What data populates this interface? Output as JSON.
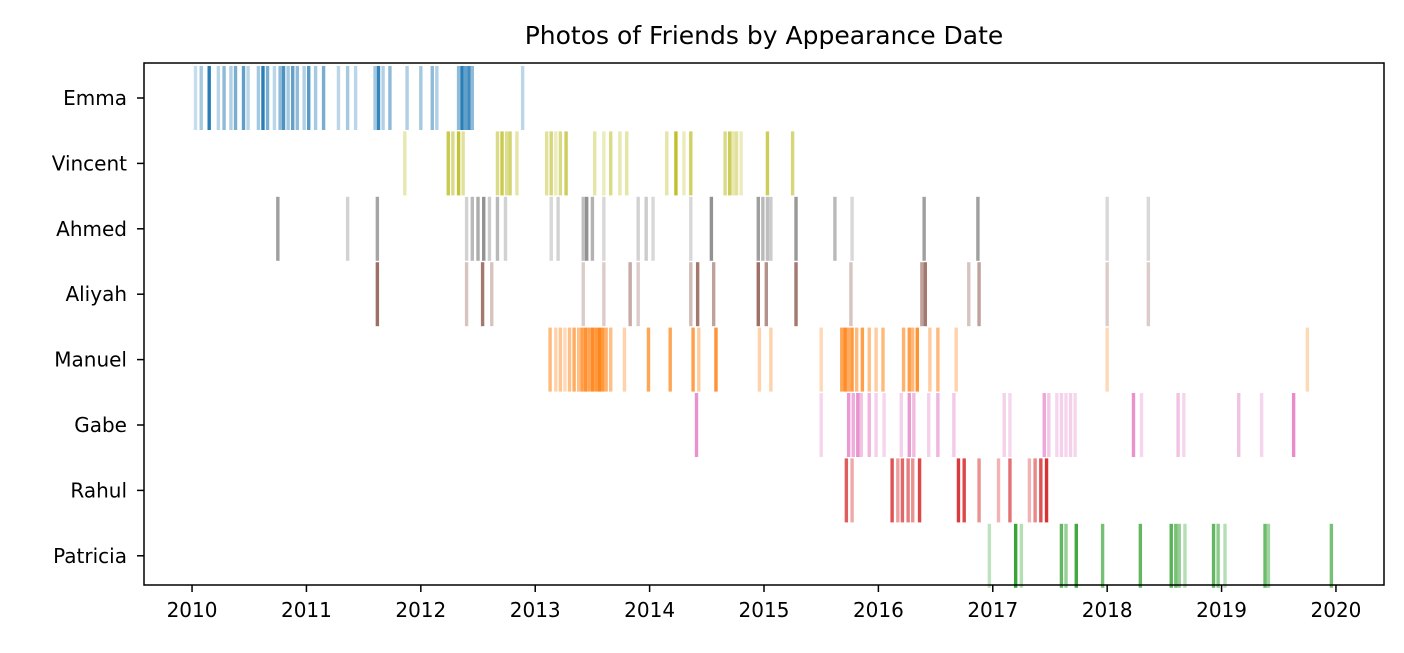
{
  "chart_data": {
    "type": "event-strip",
    "title": "Photos of Friends by Appearance Date",
    "xlabel": "",
    "ylabel": "",
    "xlim": [
      2009.58,
      2020.42
    ],
    "x_ticks": [
      "2010",
      "2011",
      "2012",
      "2013",
      "2014",
      "2015",
      "2016",
      "2017",
      "2018",
      "2019",
      "2020"
    ],
    "x_tick_values": [
      2010,
      2011,
      2012,
      2013,
      2014,
      2015,
      2016,
      2017,
      2018,
      2019,
      2020
    ],
    "grid": false,
    "series": [
      {
        "name": "Emma",
        "color": "#1f77b4",
        "events": [
          {
            "x": 2010.03,
            "w": 0.25
          },
          {
            "x": 2010.08,
            "w": 0.4
          },
          {
            "x": 2010.15,
            "w": 0.95
          },
          {
            "x": 2010.23,
            "w": 0.3
          },
          {
            "x": 2010.28,
            "w": 0.5
          },
          {
            "x": 2010.34,
            "w": 0.35
          },
          {
            "x": 2010.38,
            "w": 0.6
          },
          {
            "x": 2010.45,
            "w": 0.7
          },
          {
            "x": 2010.49,
            "w": 0.3
          },
          {
            "x": 2010.58,
            "w": 0.4
          },
          {
            "x": 2010.62,
            "w": 0.95
          },
          {
            "x": 2010.66,
            "w": 0.6
          },
          {
            "x": 2010.72,
            "w": 0.3
          },
          {
            "x": 2010.77,
            "w": 0.5
          },
          {
            "x": 2010.8,
            "w": 0.8
          },
          {
            "x": 2010.84,
            "w": 0.4
          },
          {
            "x": 2010.88,
            "w": 0.7
          },
          {
            "x": 2010.92,
            "w": 0.5
          },
          {
            "x": 2010.98,
            "w": 0.35
          },
          {
            "x": 2011.02,
            "w": 0.75
          },
          {
            "x": 2011.08,
            "w": 0.4
          },
          {
            "x": 2011.15,
            "w": 0.6
          },
          {
            "x": 2011.28,
            "w": 0.3
          },
          {
            "x": 2011.36,
            "w": 0.4
          },
          {
            "x": 2011.43,
            "w": 0.3
          },
          {
            "x": 2011.6,
            "w": 0.4
          },
          {
            "x": 2011.63,
            "w": 0.9
          },
          {
            "x": 2011.67,
            "w": 0.35
          },
          {
            "x": 2011.73,
            "w": 0.5
          },
          {
            "x": 2011.88,
            "w": 0.35
          },
          {
            "x": 2012.0,
            "w": 0.4
          },
          {
            "x": 2012.1,
            "w": 0.5
          },
          {
            "x": 2012.14,
            "w": 0.35
          },
          {
            "x": 2012.33,
            "w": 0.5
          },
          {
            "x": 2012.36,
            "w": 0.95
          },
          {
            "x": 2012.39,
            "w": 0.7
          },
          {
            "x": 2012.42,
            "w": 0.85
          },
          {
            "x": 2012.45,
            "w": 0.5
          },
          {
            "x": 2012.89,
            "w": 0.3
          }
        ]
      },
      {
        "name": "Vincent",
        "color": "#bcbd22",
        "events": [
          {
            "x": 2011.86,
            "w": 0.35
          },
          {
            "x": 2012.24,
            "w": 0.8
          },
          {
            "x": 2012.28,
            "w": 0.55
          },
          {
            "x": 2012.33,
            "w": 0.9
          },
          {
            "x": 2012.37,
            "w": 0.45
          },
          {
            "x": 2012.67,
            "w": 0.55
          },
          {
            "x": 2012.71,
            "w": 0.8
          },
          {
            "x": 2012.75,
            "w": 0.5
          },
          {
            "x": 2012.78,
            "w": 0.65
          },
          {
            "x": 2012.84,
            "w": 0.4
          },
          {
            "x": 2013.1,
            "w": 0.45
          },
          {
            "x": 2013.14,
            "w": 0.6
          },
          {
            "x": 2013.18,
            "w": 0.3
          },
          {
            "x": 2013.22,
            "w": 0.55
          },
          {
            "x": 2013.27,
            "w": 0.75
          },
          {
            "x": 2013.52,
            "w": 0.4
          },
          {
            "x": 2013.6,
            "w": 0.3
          },
          {
            "x": 2013.66,
            "w": 0.55
          },
          {
            "x": 2013.74,
            "w": 0.35
          },
          {
            "x": 2013.8,
            "w": 0.4
          },
          {
            "x": 2014.15,
            "w": 0.4
          },
          {
            "x": 2014.23,
            "w": 0.95
          },
          {
            "x": 2014.3,
            "w": 0.3
          },
          {
            "x": 2014.36,
            "w": 0.7
          },
          {
            "x": 2014.66,
            "w": 0.55
          },
          {
            "x": 2014.7,
            "w": 0.75
          },
          {
            "x": 2014.73,
            "w": 0.35
          },
          {
            "x": 2014.76,
            "w": 0.45
          },
          {
            "x": 2014.8,
            "w": 0.3
          },
          {
            "x": 2015.03,
            "w": 0.75
          },
          {
            "x": 2015.25,
            "w": 0.6
          }
        ]
      },
      {
        "name": "Ahmed",
        "color": "#7f7f7f",
        "events": [
          {
            "x": 2010.75,
            "w": 0.75
          },
          {
            "x": 2011.36,
            "w": 0.35
          },
          {
            "x": 2011.62,
            "w": 0.7
          },
          {
            "x": 2012.4,
            "w": 0.35
          },
          {
            "x": 2012.45,
            "w": 0.55
          },
          {
            "x": 2012.5,
            "w": 0.65
          },
          {
            "x": 2012.55,
            "w": 0.85
          },
          {
            "x": 2012.6,
            "w": 0.4
          },
          {
            "x": 2012.67,
            "w": 0.55
          },
          {
            "x": 2012.74,
            "w": 0.35
          },
          {
            "x": 2013.14,
            "w": 0.3
          },
          {
            "x": 2013.2,
            "w": 0.35
          },
          {
            "x": 2013.42,
            "w": 0.5
          },
          {
            "x": 2013.45,
            "w": 0.85
          },
          {
            "x": 2013.5,
            "w": 0.6
          },
          {
            "x": 2013.6,
            "w": 0.3
          },
          {
            "x": 2013.9,
            "w": 0.35
          },
          {
            "x": 2013.97,
            "w": 0.4
          },
          {
            "x": 2014.03,
            "w": 0.3
          },
          {
            "x": 2014.36,
            "w": 0.3
          },
          {
            "x": 2014.54,
            "w": 0.85
          },
          {
            "x": 2014.95,
            "w": 0.75
          },
          {
            "x": 2014.99,
            "w": 0.55
          },
          {
            "x": 2015.03,
            "w": 0.5
          },
          {
            "x": 2015.06,
            "w": 0.4
          },
          {
            "x": 2015.28,
            "w": 0.8
          },
          {
            "x": 2015.62,
            "w": 0.55
          },
          {
            "x": 2015.77,
            "w": 0.3
          },
          {
            "x": 2016.4,
            "w": 0.75
          },
          {
            "x": 2016.87,
            "w": 0.75
          },
          {
            "x": 2018.0,
            "w": 0.3
          },
          {
            "x": 2018.36,
            "w": 0.3
          }
        ]
      },
      {
        "name": "Aliyah",
        "color": "#8c564b",
        "events": [
          {
            "x": 2011.62,
            "w": 0.85
          },
          {
            "x": 2012.4,
            "w": 0.35
          },
          {
            "x": 2012.54,
            "w": 0.8
          },
          {
            "x": 2012.62,
            "w": 0.35
          },
          {
            "x": 2013.42,
            "w": 0.3
          },
          {
            "x": 2013.6,
            "w": 0.3
          },
          {
            "x": 2013.83,
            "w": 0.5
          },
          {
            "x": 2013.9,
            "w": 0.3
          },
          {
            "x": 2014.36,
            "w": 0.4
          },
          {
            "x": 2014.42,
            "w": 0.8
          },
          {
            "x": 2014.56,
            "w": 0.55
          },
          {
            "x": 2014.95,
            "w": 0.85
          },
          {
            "x": 2015.02,
            "w": 0.65
          },
          {
            "x": 2015.28,
            "w": 0.8
          },
          {
            "x": 2015.76,
            "w": 0.35
          },
          {
            "x": 2016.38,
            "w": 0.55
          },
          {
            "x": 2016.41,
            "w": 0.8
          },
          {
            "x": 2016.79,
            "w": 0.35
          },
          {
            "x": 2016.88,
            "w": 0.55
          },
          {
            "x": 2018.0,
            "w": 0.3
          },
          {
            "x": 2018.36,
            "w": 0.3
          }
        ]
      },
      {
        "name": "Manuel",
        "color": "#ff7f0e",
        "events": [
          {
            "x": 2013.13,
            "w": 0.55
          },
          {
            "x": 2013.18,
            "w": 0.35
          },
          {
            "x": 2013.22,
            "w": 0.45
          },
          {
            "x": 2013.26,
            "w": 0.3
          },
          {
            "x": 2013.3,
            "w": 0.5
          },
          {
            "x": 2013.34,
            "w": 0.65
          },
          {
            "x": 2013.38,
            "w": 0.5
          },
          {
            "x": 2013.41,
            "w": 0.75
          },
          {
            "x": 2013.44,
            "w": 0.85
          },
          {
            "x": 2013.47,
            "w": 0.7
          },
          {
            "x": 2013.5,
            "w": 0.9
          },
          {
            "x": 2013.53,
            "w": 0.8
          },
          {
            "x": 2013.56,
            "w": 0.95
          },
          {
            "x": 2013.59,
            "w": 0.8
          },
          {
            "x": 2013.62,
            "w": 0.6
          },
          {
            "x": 2013.66,
            "w": 0.5
          },
          {
            "x": 2013.78,
            "w": 0.35
          },
          {
            "x": 2013.99,
            "w": 0.7
          },
          {
            "x": 2014.18,
            "w": 0.7
          },
          {
            "x": 2014.38,
            "w": 0.75
          },
          {
            "x": 2014.43,
            "w": 0.4
          },
          {
            "x": 2014.58,
            "w": 0.85
          },
          {
            "x": 2014.96,
            "w": 0.35
          },
          {
            "x": 2015.06,
            "w": 0.35
          },
          {
            "x": 2015.5,
            "w": 0.3
          },
          {
            "x": 2015.68,
            "w": 0.7
          },
          {
            "x": 2015.71,
            "w": 0.9
          },
          {
            "x": 2015.74,
            "w": 0.65
          },
          {
            "x": 2015.77,
            "w": 0.8
          },
          {
            "x": 2015.81,
            "w": 0.55
          },
          {
            "x": 2015.86,
            "w": 0.75
          },
          {
            "x": 2015.92,
            "w": 0.5
          },
          {
            "x": 2015.98,
            "w": 0.4
          },
          {
            "x": 2016.04,
            "w": 0.55
          },
          {
            "x": 2016.22,
            "w": 0.6
          },
          {
            "x": 2016.27,
            "w": 0.75
          },
          {
            "x": 2016.3,
            "w": 0.55
          },
          {
            "x": 2016.34,
            "w": 0.85
          },
          {
            "x": 2016.45,
            "w": 0.4
          },
          {
            "x": 2016.52,
            "w": 0.55
          },
          {
            "x": 2016.68,
            "w": 0.35
          },
          {
            "x": 2018.0,
            "w": 0.3
          },
          {
            "x": 2019.75,
            "w": 0.3
          }
        ]
      },
      {
        "name": "Gabe",
        "color": "#e377c2",
        "events": [
          {
            "x": 2014.41,
            "w": 0.8
          },
          {
            "x": 2015.5,
            "w": 0.3
          },
          {
            "x": 2015.74,
            "w": 0.75
          },
          {
            "x": 2015.78,
            "w": 0.6
          },
          {
            "x": 2015.82,
            "w": 0.8
          },
          {
            "x": 2015.85,
            "w": 0.45
          },
          {
            "x": 2015.92,
            "w": 0.55
          },
          {
            "x": 2015.98,
            "w": 0.35
          },
          {
            "x": 2016.05,
            "w": 0.3
          },
          {
            "x": 2016.2,
            "w": 0.35
          },
          {
            "x": 2016.27,
            "w": 0.75
          },
          {
            "x": 2016.31,
            "w": 0.5
          },
          {
            "x": 2016.44,
            "w": 0.35
          },
          {
            "x": 2016.52,
            "w": 0.55
          },
          {
            "x": 2016.66,
            "w": 0.4
          },
          {
            "x": 2017.1,
            "w": 0.35
          },
          {
            "x": 2017.15,
            "w": 0.3
          },
          {
            "x": 2017.45,
            "w": 0.65
          },
          {
            "x": 2017.49,
            "w": 0.4
          },
          {
            "x": 2017.56,
            "w": 0.3
          },
          {
            "x": 2017.6,
            "w": 0.35
          },
          {
            "x": 2017.64,
            "w": 0.3
          },
          {
            "x": 2017.68,
            "w": 0.35
          },
          {
            "x": 2017.72,
            "w": 0.3
          },
          {
            "x": 2018.23,
            "w": 0.8
          },
          {
            "x": 2018.3,
            "w": 0.3
          },
          {
            "x": 2018.62,
            "w": 0.45
          },
          {
            "x": 2018.67,
            "w": 0.3
          },
          {
            "x": 2019.15,
            "w": 0.45
          },
          {
            "x": 2019.35,
            "w": 0.3
          },
          {
            "x": 2019.63,
            "w": 0.85
          }
        ]
      },
      {
        "name": "Rahul",
        "color": "#d62728",
        "events": [
          {
            "x": 2015.72,
            "w": 0.75
          },
          {
            "x": 2015.77,
            "w": 0.4
          },
          {
            "x": 2016.12,
            "w": 0.8
          },
          {
            "x": 2016.17,
            "w": 0.45
          },
          {
            "x": 2016.21,
            "w": 0.7
          },
          {
            "x": 2016.26,
            "w": 0.6
          },
          {
            "x": 2016.3,
            "w": 0.5
          },
          {
            "x": 2016.36,
            "w": 0.85
          },
          {
            "x": 2016.7,
            "w": 0.9
          },
          {
            "x": 2016.75,
            "w": 0.85
          },
          {
            "x": 2016.88,
            "w": 0.5
          },
          {
            "x": 2017.05,
            "w": 0.35
          },
          {
            "x": 2017.15,
            "w": 0.65
          },
          {
            "x": 2017.32,
            "w": 0.35
          },
          {
            "x": 2017.37,
            "w": 0.55
          },
          {
            "x": 2017.42,
            "w": 0.8
          },
          {
            "x": 2017.47,
            "w": 0.95
          }
        ]
      },
      {
        "name": "Patricia",
        "color": "#2ca02c",
        "events": [
          {
            "x": 2016.97,
            "w": 0.3
          },
          {
            "x": 2017.2,
            "w": 0.95
          },
          {
            "x": 2017.25,
            "w": 0.35
          },
          {
            "x": 2017.6,
            "w": 0.75
          },
          {
            "x": 2017.64,
            "w": 0.5
          },
          {
            "x": 2017.73,
            "w": 0.9
          },
          {
            "x": 2017.96,
            "w": 0.65
          },
          {
            "x": 2018.29,
            "w": 0.75
          },
          {
            "x": 2018.56,
            "w": 0.8
          },
          {
            "x": 2018.6,
            "w": 0.65
          },
          {
            "x": 2018.63,
            "w": 0.5
          },
          {
            "x": 2018.68,
            "w": 0.35
          },
          {
            "x": 2018.93,
            "w": 0.75
          },
          {
            "x": 2018.97,
            "w": 0.55
          },
          {
            "x": 2019.03,
            "w": 0.35
          },
          {
            "x": 2019.38,
            "w": 0.7
          },
          {
            "x": 2019.41,
            "w": 0.45
          },
          {
            "x": 2019.96,
            "w": 0.65
          }
        ]
      }
    ]
  }
}
